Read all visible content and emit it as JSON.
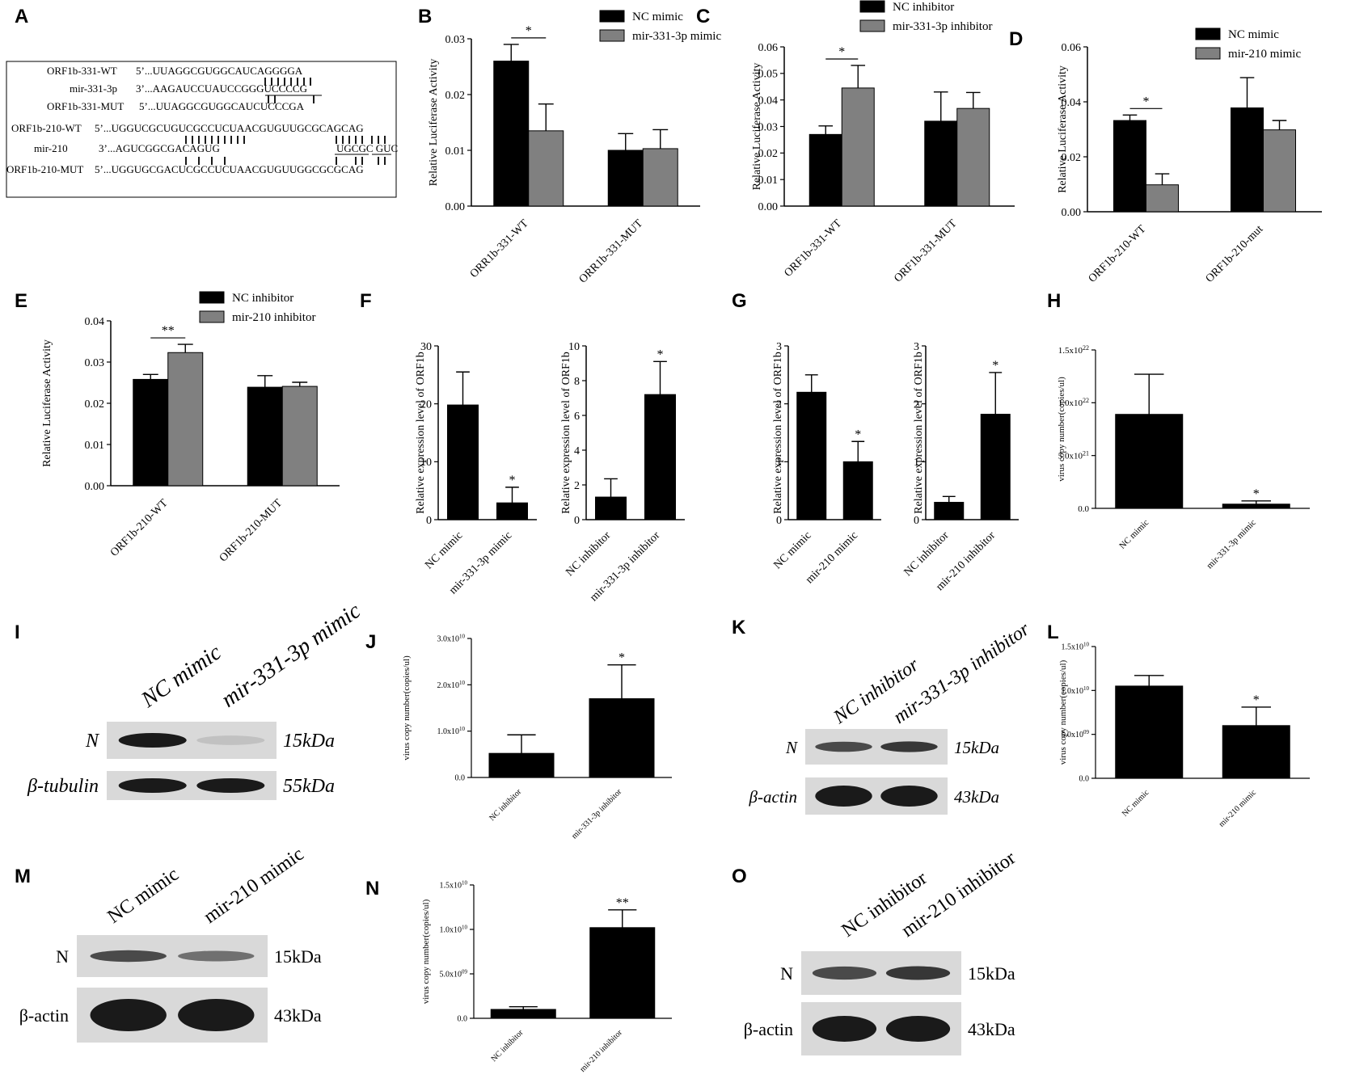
{
  "colors": {
    "black": "#000000",
    "gray": "#808080",
    "blot_bg": "#d9d9d9",
    "band": "#1a1a1a"
  },
  "panel_a": {
    "letter": "A",
    "rows": [
      {
        "name": "ORF1b-331-WT",
        "seq": "5’...UUAGGCGUGGCAUCAGGGGA"
      },
      {
        "name": "mir-331-3p",
        "seq": "3’...AAGAUCCUAUCCGGGUCCCCG"
      },
      {
        "name": "ORF1b-331-MUT",
        "seq": "5’...UUAGGCGUGGCAUCUCCCGA"
      },
      {
        "name": "ORF1b-210-WT",
        "seq": "5’...UGGUCGCUGUCGCCUCUAACGUGUUGCGCAGCAG"
      },
      {
        "name": "mir-210",
        "seq": "3’...AGUCGGCGACAGUG",
        "seq2": "UGCGC GUC"
      },
      {
        "name": "ORF1b-210-MUT",
        "seq": "5’...UGGUGCGACUCGCCUCUAACGUGUUGGCGCGCAG"
      }
    ]
  },
  "chart_data": [
    {
      "panel": "B",
      "type": "bar",
      "ylabel": "Relative Luciferase Activity",
      "categories": [
        "ORR1b-331-WT",
        "ORR1b-331-MUT"
      ],
      "series": [
        {
          "name": "NC mimic",
          "values": [
            0.026,
            0.01
          ],
          "errors": [
            0.003,
            0.003
          ]
        },
        {
          "name": "mir-331-3p mimic",
          "values": [
            0.0135,
            0.0103
          ],
          "errors": [
            0.0048,
            0.0034
          ]
        }
      ],
      "ylim": [
        0,
        0.03
      ],
      "yticks": [
        "0.00",
        "0.01",
        "0.02",
        "0.03"
      ],
      "sig": [
        {
          "index": 0,
          "label": "*"
        }
      ]
    },
    {
      "panel": "C",
      "type": "bar",
      "ylabel": "Relative Luciferase Activity",
      "categories": [
        "ORF1b-331-WT",
        "ORF1b-331-MUT"
      ],
      "series": [
        {
          "name": "NC inhibitor",
          "values": [
            0.027,
            0.032
          ],
          "errors": [
            0.0032,
            0.011
          ]
        },
        {
          "name": "mir-331-3p inhibitor",
          "values": [
            0.0445,
            0.0368
          ],
          "errors": [
            0.0085,
            0.006
          ]
        }
      ],
      "ylim": [
        0,
        0.06
      ],
      "yticks": [
        "0.00",
        "0.01",
        "0.02",
        "0.03",
        "0.04",
        "0.05",
        "0.06"
      ],
      "sig": [
        {
          "index": 0,
          "label": "*"
        }
      ]
    },
    {
      "panel": "D",
      "type": "bar",
      "ylabel": "Relative Luciferase Activity",
      "categories": [
        "ORF1b-210-WT",
        "ORF1b-210-mut"
      ],
      "series": [
        {
          "name": "NC mimic",
          "values": [
            0.0332,
            0.0378
          ],
          "errors": [
            0.002,
            0.011
          ]
        },
        {
          "name": "mir-210 mimic",
          "values": [
            0.0098,
            0.0298
          ],
          "errors": [
            0.004,
            0.0034
          ]
        }
      ],
      "ylim": [
        0,
        0.06
      ],
      "yticks": [
        "0.00",
        "0.02",
        "0.04",
        "0.06"
      ],
      "sig": [
        {
          "index": 0,
          "label": "*"
        }
      ]
    },
    {
      "panel": "E",
      "type": "bar",
      "ylabel": "Relative Luciferase Activity",
      "categories": [
        "ORF1b-210-WT",
        "ORF1b-210-MUT"
      ],
      "series": [
        {
          "name": "NC inhibitor",
          "values": [
            0.0258,
            0.0239
          ],
          "errors": [
            0.0012,
            0.0028
          ]
        },
        {
          "name": "mir-210 inhibitor",
          "values": [
            0.0323,
            0.0241
          ],
          "errors": [
            0.002,
            0.001
          ]
        }
      ],
      "ylim": [
        0,
        0.04
      ],
      "yticks": [
        "0.00",
        "0.01",
        "0.02",
        "0.03",
        "0.04"
      ],
      "sig": [
        {
          "index": 0,
          "label": "**"
        }
      ]
    },
    {
      "panel": "F1",
      "type": "bar",
      "ylabel": "Relative expression level of ORF1b",
      "categories": [
        "NC mimic",
        "mir-331-3p mimic"
      ],
      "values": [
        19.8,
        2.9
      ],
      "errors": [
        5.7,
        2.7
      ],
      "ylim": [
        0,
        30
      ],
      "yticks": [
        "0",
        "10",
        "20",
        "30"
      ],
      "sig": [
        {
          "index": 1,
          "label": "*"
        }
      ]
    },
    {
      "panel": "F2",
      "type": "bar",
      "ylabel": "Relative expression level of ORF1b",
      "categories": [
        "NC inhibitor",
        "mir-331-3p inhibitor"
      ],
      "values": [
        1.3,
        7.2
      ],
      "errors": [
        1.05,
        1.9
      ],
      "ylim": [
        0,
        10
      ],
      "yticks": [
        "0",
        "2",
        "4",
        "6",
        "8",
        "10"
      ],
      "sig": [
        {
          "index": 1,
          "label": "*"
        }
      ]
    },
    {
      "panel": "G1",
      "type": "bar",
      "ylabel": "Relative expression level of ORF1b",
      "categories": [
        "NC mimic",
        "mir-210 mimic"
      ],
      "values": [
        2.2,
        1.0
      ],
      "errors": [
        0.3,
        0.35
      ],
      "ylim": [
        0,
        3
      ],
      "yticks": [
        "0",
        "1",
        "2",
        "3"
      ],
      "sig": [
        {
          "index": 1,
          "label": "*"
        }
      ]
    },
    {
      "panel": "G2",
      "type": "bar",
      "ylabel": "Relative expression level of ORF1b",
      "categories": [
        "NC inhibitor",
        "mir-210 inhibitor"
      ],
      "values": [
        0.3,
        1.82
      ],
      "errors": [
        0.1,
        0.72
      ],
      "ylim": [
        0,
        3
      ],
      "yticks": [
        "0",
        "1",
        "2",
        "3"
      ],
      "sig": [
        {
          "index": 1,
          "label": "*"
        }
      ]
    },
    {
      "panel": "H",
      "type": "bar",
      "ylabel": "virus copy number(copies/ul)",
      "categories": [
        "NC mimic",
        "mir-331-3p mimic"
      ],
      "values": [
        8.9e+21,
        4e+20
      ],
      "errors": [
        3.8e+21,
        3e+20
      ],
      "ylim": [
        0,
        1.5e+22
      ],
      "yticks": [
        "0.0",
        "5.0x10^21",
        "1.0x10^22",
        "1.5x10^22"
      ],
      "sig": [
        {
          "index": 1,
          "label": "*"
        }
      ]
    },
    {
      "panel": "J",
      "type": "bar",
      "ylabel": "virus copy number(copies/ul)",
      "categories": [
        "NC inhibitor",
        "mir-331-3p inhibitor"
      ],
      "values": [
        5200000000.0,
        17000000000.0
      ],
      "errors": [
        4000000000.0,
        7300000000.0
      ],
      "ylim": [
        0,
        30000000000.0
      ],
      "yticks": [
        "0.0",
        "1.0x10^10",
        "2.0x10^10",
        "3.0x10^10"
      ],
      "sig": [
        {
          "index": 1,
          "label": "*"
        }
      ]
    },
    {
      "panel": "L",
      "type": "bar",
      "ylabel": "virus copy number(copies/ul)",
      "categories": [
        "NC mimic",
        "mir-210 mimic"
      ],
      "values": [
        10500000000.0,
        6000000000.0
      ],
      "errors": [
        1200000000.0,
        2100000000.0
      ],
      "ylim": [
        0,
        15000000000.0
      ],
      "yticks": [
        "0.0",
        "5.0x10^09",
        "1.0x10^10",
        "1.5x10^10"
      ],
      "sig": [
        {
          "index": 1,
          "label": "*"
        }
      ]
    },
    {
      "panel": "N",
      "type": "bar",
      "ylabel": "virus copy number(copies/ul)",
      "categories": [
        "NC inhibitor",
        "mir-210 inhibitor"
      ],
      "values": [
        1000000000.0,
        10200000000.0
      ],
      "errors": [
        300000000.0,
        2000000000.0
      ],
      "ylim": [
        0,
        15000000000.0
      ],
      "yticks": [
        "0.0",
        "5.0x10^09",
        "1.0x10^10",
        "1.5x10^10"
      ],
      "sig": [
        {
          "index": 1,
          "label": "**"
        }
      ]
    }
  ],
  "blots": [
    {
      "panel": "I",
      "lanes": [
        "NC mimic",
        "mir-331-3p mimic"
      ],
      "rows": [
        {
          "label": "N",
          "kda": "15kDa",
          "band": [
            1.0,
            0.12
          ]
        },
        {
          "label": "β-tubulin",
          "kda": "55kDa",
          "band": [
            1.0,
            1.0
          ]
        }
      ]
    },
    {
      "panel": "K",
      "lanes": [
        "NC inhibitor",
        "mir-331-3p inhibitor"
      ],
      "rows": [
        {
          "label": "N",
          "kda": "15kDa",
          "band": [
            0.75,
            0.85
          ]
        },
        {
          "label": "β-actin",
          "kda": "43kDa",
          "band": [
            1.0,
            1.0
          ]
        }
      ]
    },
    {
      "panel": "M",
      "lanes": [
        "NC mimic",
        "mir-210 mimic"
      ],
      "rows": [
        {
          "label": "N",
          "kda": "15kDa",
          "band": [
            0.75,
            0.55
          ]
        },
        {
          "label": "β-actin",
          "kda": "43kDa",
          "band": [
            1.0,
            1.0
          ]
        }
      ]
    },
    {
      "panel": "O",
      "lanes": [
        "NC inhibitor",
        "mir-210 inhibitor"
      ],
      "rows": [
        {
          "label": "N",
          "kda": "15kDa",
          "band": [
            0.75,
            0.85
          ]
        },
        {
          "label": "β-actin",
          "kda": "43kDa",
          "band": [
            1.0,
            1.0
          ]
        }
      ]
    }
  ]
}
